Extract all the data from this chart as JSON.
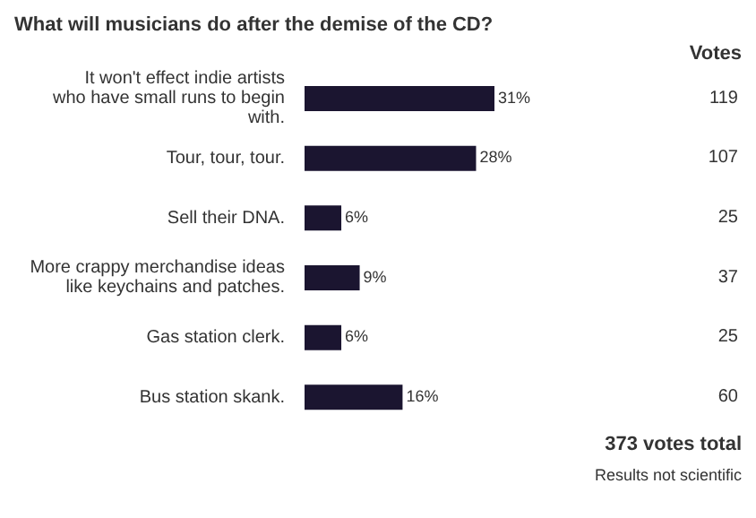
{
  "chart_data": {
    "type": "bar",
    "orientation": "horizontal",
    "title": "What will musicians do after the demise of the CD?",
    "categories": [
      "It won't effect indie artists who have small runs to begin with.",
      "Tour, tour, tour.",
      "Sell their DNA.",
      "More crappy merchandise ideas like keychains and patches.",
      "Gas station clerk.",
      "Bus station skank."
    ],
    "values": [
      31,
      28,
      6,
      9,
      6,
      16
    ],
    "value_labels": [
      "31%",
      "28%",
      "6%",
      "9%",
      "6%",
      "16%"
    ],
    "color": "#1b1530",
    "annotations": [
      "Votes",
      "119",
      "107",
      "25",
      "37",
      "25",
      "60",
      "373 votes total",
      "Results not scientific"
    ]
  }
}
